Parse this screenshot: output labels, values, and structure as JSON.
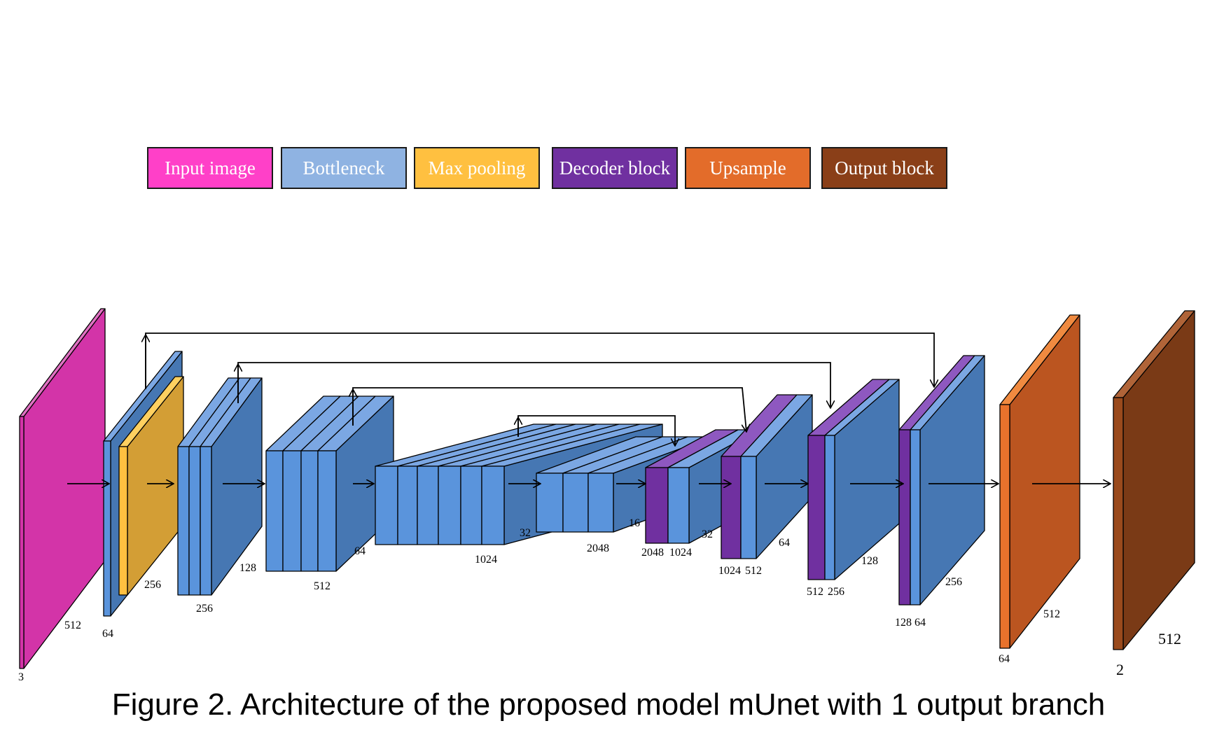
{
  "legend": [
    {
      "label": "Input image",
      "color": "#ff40c8"
    },
    {
      "label": "Bottleneck",
      "color": "#8fb3e2"
    },
    {
      "label": "Max pooling",
      "color": "#ffc040"
    },
    {
      "label": "Decoder block",
      "color": "#7030a0"
    },
    {
      "label": "Upsample",
      "color": "#e36c2a"
    },
    {
      "label": "Output block",
      "color": "#8a3f18"
    }
  ],
  "colors": {
    "input": "#d334a8",
    "bottleneck_front": "#5a94dc",
    "bottleneck_side": "#4677b3",
    "bottleneck_top": "#7ba7e3",
    "maxpool": "#d39e35",
    "decoder": "#7030a0",
    "upsample": "#bb5520",
    "output": "#7a3a16"
  },
  "dims": {
    "input": [
      "512",
      "3"
    ],
    "block1": [
      "64",
      "256"
    ],
    "block2": [
      "256",
      "128"
    ],
    "block3": [
      "512",
      "64"
    ],
    "block4": [
      "1024",
      "32"
    ],
    "block5": [
      "2048",
      "16"
    ],
    "dec1": [
      "2048",
      "1024",
      "32"
    ],
    "dec2": [
      "1024",
      "512",
      "64"
    ],
    "dec3": [
      "512",
      "256",
      "128"
    ],
    "dec4": [
      "128",
      "64",
      "256"
    ],
    "upsample": [
      "512",
      "64"
    ],
    "output": [
      "512",
      "2"
    ]
  },
  "caption": "Figure 2. Architecture of the proposed model mUnet with 1 output branch"
}
